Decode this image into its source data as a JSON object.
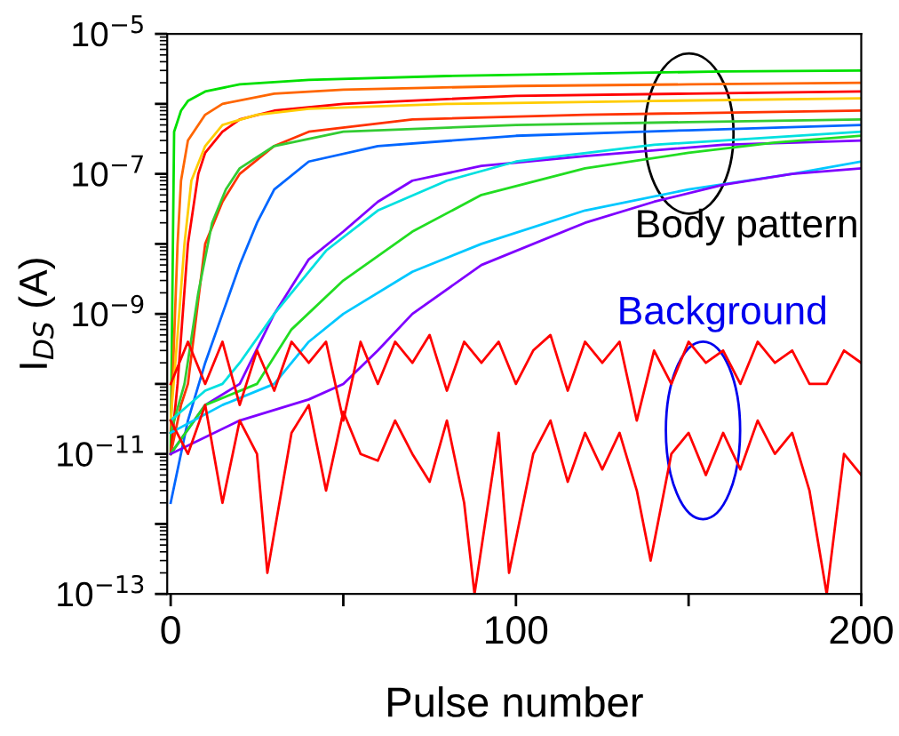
{
  "chart_data": {
    "type": "line",
    "xlabel": "Pulse number",
    "ylabel": "I$_{DS}$ (A)",
    "log": "y",
    "xlim": [
      -1,
      200
    ],
    "ylim": [
      1e-13,
      1e-05
    ],
    "xticks": [
      0,
      {
        "value": 50,
        "label": null
      },
      100,
      {
        "value": 150,
        "label": null
      },
      200
    ],
    "yticks": [
      {
        "value": 1e-13,
        "label": "10$^{−13}$"
      },
      {
        "value": 1e-12,
        "label": null
      },
      {
        "value": 1e-11,
        "label": "10$^{−11}$"
      },
      {
        "value": 1e-10,
        "label": null
      },
      {
        "value": 1e-09,
        "label": "10$^{−9}$"
      },
      {
        "value": 1e-08,
        "label": null
      },
      {
        "value": 1e-07,
        "label": "10$^{−7}$"
      },
      {
        "value": 1e-06,
        "label": null
      },
      {
        "value": 1e-05,
        "label": "10$^{−5}$"
      }
    ],
    "grid": false,
    "legend": false,
    "marker": "none",
    "line_style": "solid",
    "annotations": [
      "Body pattern",
      "Background"
    ],
    "series": [
      {
        "color": "#00e000",
        "x": [
          0,
          1,
          3,
          5,
          10,
          20,
          40,
          80,
          120,
          160,
          200
        ],
        "values": [
          1e-11,
          4e-07,
          8e-07,
          1.1e-06,
          1.5e-06,
          1.9e-06,
          2.2e-06,
          2.5e-06,
          2.7e-06,
          2.9e-06,
          3e-06
        ]
      },
      {
        "color": "#ff6600",
        "x": [
          0,
          2,
          3,
          5,
          10,
          15,
          30,
          50,
          100,
          150,
          200
        ],
        "values": [
          2e-11,
          1e-08,
          8e-08,
          3e-07,
          7e-07,
          1e-06,
          1.4e-06,
          1.6e-06,
          1.8e-06,
          1.9e-06,
          2e-06
        ]
      },
      {
        "color": "#ff0000",
        "x": [
          0,
          2,
          5,
          8,
          10,
          15,
          20,
          30,
          50,
          100,
          150,
          200
        ],
        "values": [
          1e-11,
          1e-10,
          1e-08,
          1e-07,
          2e-07,
          4e-07,
          6e-07,
          8e-07,
          1e-06,
          1.3e-06,
          1.4e-06,
          1.5e-06
        ]
      },
      {
        "color": "#ffcc00",
        "x": [
          0,
          2,
          4,
          6,
          10,
          15,
          25,
          40,
          80,
          140,
          200
        ],
        "values": [
          3e-11,
          5e-10,
          1e-08,
          8e-08,
          2.5e-07,
          5e-07,
          7e-07,
          8.5e-07,
          1e-06,
          1.1e-06,
          1.2e-06
        ]
      },
      {
        "color": "#ff3300",
        "x": [
          0,
          3,
          5,
          10,
          15,
          20,
          30,
          40,
          70,
          120,
          200
        ],
        "values": [
          1e-11,
          5e-11,
          1e-10,
          1e-08,
          4e-08,
          1e-07,
          2.5e-07,
          4e-07,
          6e-07,
          7e-07,
          8e-07
        ]
      },
      {
        "color": "#33cc33",
        "x": [
          0,
          4,
          8,
          12,
          16,
          20,
          30,
          50,
          100,
          150,
          200
        ],
        "values": [
          2e-11,
          1e-10,
          2e-09,
          2e-08,
          6e-08,
          1.2e-07,
          2.5e-07,
          4e-07,
          5e-07,
          5.5e-07,
          6e-07
        ]
      },
      {
        "color": "#0066ff",
        "x": [
          0,
          5,
          10,
          15,
          20,
          25,
          30,
          40,
          60,
          100,
          150,
          200
        ],
        "values": [
          2e-12,
          3e-11,
          2e-10,
          1e-09,
          5e-09,
          2e-08,
          6e-08,
          1.5e-07,
          2.5e-07,
          3.5e-07,
          4.2e-07,
          5e-07
        ]
      },
      {
        "color": "#7f00ff",
        "x": [
          0,
          10,
          20,
          30,
          40,
          50,
          60,
          70,
          90,
          120,
          160,
          200
        ],
        "values": [
          1e-11,
          5e-11,
          1e-10,
          1e-09,
          6e-09,
          1.5e-08,
          4e-08,
          8e-08,
          1.3e-07,
          1.8e-07,
          2.6e-07,
          3e-07
        ]
      },
      {
        "color": "#00e0e0",
        "x": [
          0,
          10,
          15,
          20,
          30,
          45,
          60,
          80,
          100,
          140,
          200
        ],
        "values": [
          3e-11,
          8e-11,
          1e-10,
          2e-10,
          1e-09,
          8e-09,
          3e-08,
          8e-08,
          1.5e-07,
          2.6e-07,
          4e-07
        ]
      },
      {
        "color": "#22dd22",
        "x": [
          0,
          10,
          25,
          35,
          50,
          70,
          90,
          120,
          150,
          175,
          200
        ],
        "values": [
          1e-11,
          5e-11,
          1e-10,
          6e-10,
          3e-09,
          1.5e-08,
          5e-08,
          1.2e-07,
          2e-07,
          2.8e-07,
          3.5e-07
        ]
      },
      {
        "color": "#00c8ff",
        "x": [
          0,
          15,
          30,
          40,
          50,
          70,
          90,
          120,
          150,
          180,
          200
        ],
        "values": [
          2e-11,
          5e-11,
          1e-10,
          4e-10,
          1e-09,
          4e-09,
          1e-08,
          3e-08,
          6e-08,
          1e-07,
          1.5e-07
        ]
      },
      {
        "color": "#7f00ff",
        "x": [
          0,
          20,
          40,
          50,
          60,
          70,
          90,
          120,
          140,
          160,
          180,
          200
        ],
        "values": [
          1e-11,
          3e-11,
          6e-11,
          1e-10,
          3e-10,
          1e-09,
          5e-09,
          2e-08,
          4e-08,
          7e-08,
          1e-07,
          1.2e-07
        ]
      },
      {
        "color": "#ff0000",
        "x": [
          0,
          5,
          10,
          15,
          20,
          25,
          30,
          35,
          40,
          45,
          50,
          55,
          60,
          65,
          70,
          75,
          80,
          85,
          90,
          95,
          100,
          105,
          110,
          115,
          120,
          125,
          130,
          135,
          140,
          145,
          150,
          155,
          160,
          165,
          170,
          175,
          180,
          185,
          190,
          195,
          200
        ],
        "values": [
          1e-10,
          4e-10,
          1e-10,
          4e-10,
          5e-11,
          3e-10,
          8e-11,
          4e-10,
          2e-10,
          4e-10,
          3e-11,
          4e-10,
          1e-10,
          4e-10,
          2e-10,
          5e-10,
          8e-11,
          4e-10,
          2e-10,
          4e-10,
          1e-10,
          3e-10,
          5e-10,
          8e-11,
          4e-10,
          2e-10,
          4e-10,
          3e-11,
          3e-10,
          1e-10,
          4e-10,
          2e-10,
          3e-10,
          1e-10,
          4e-10,
          2e-10,
          3e-10,
          1e-10,
          1e-10,
          3e-10,
          2e-10
        ]
      },
      {
        "color": "#ff0000",
        "x": [
          0,
          5,
          10,
          15,
          20,
          25,
          28,
          35,
          40,
          45,
          50,
          55,
          60,
          65,
          70,
          75,
          80,
          85,
          88,
          95,
          98,
          105,
          110,
          115,
          120,
          125,
          130,
          135,
          139,
          145,
          150,
          155,
          160,
          165,
          170,
          175,
          180,
          185,
          190,
          195,
          200
        ],
        "values": [
          3e-11,
          1e-11,
          5e-11,
          2e-12,
          3e-11,
          1e-11,
          2e-13,
          2e-11,
          5e-11,
          3e-12,
          4e-11,
          1e-11,
          8e-12,
          3e-11,
          1e-11,
          4e-12,
          3e-11,
          2e-12,
          1e-13,
          2e-11,
          2e-13,
          1e-11,
          3e-11,
          4e-12,
          2e-11,
          6e-12,
          2e-11,
          3e-12,
          3e-13,
          1e-11,
          2e-11,
          5e-12,
          2e-11,
          6e-12,
          3e-11,
          1e-11,
          2e-11,
          3e-12,
          1e-13,
          1e-11,
          5e-12
        ]
      }
    ]
  }
}
